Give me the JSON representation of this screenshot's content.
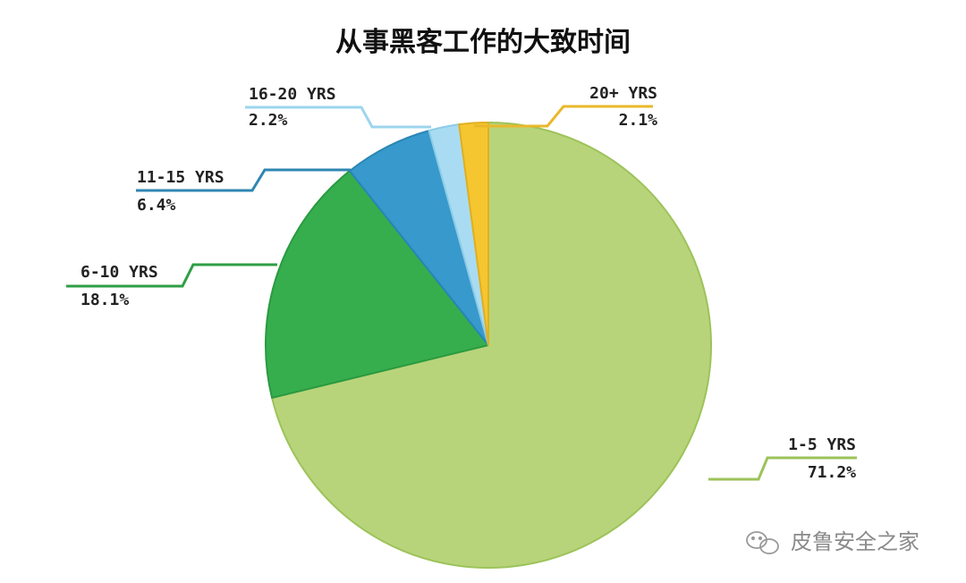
{
  "chart_data": {
    "type": "pie",
    "title": "从事黑客工作的大致时间",
    "start_angle_deg": 0,
    "direction": "clockwise",
    "slices": [
      {
        "label": "1-5 YRS",
        "value": 71.2,
        "value_label": "71.2%",
        "color": "#b8d47a",
        "stroke": "#9cc35a",
        "line_color": "#9cc35a"
      },
      {
        "label": "6-10 YRS",
        "value": 18.1,
        "value_label": "18.1%",
        "color": "#37ae4e",
        "stroke": "#2a9a40",
        "line_color": "#2f9e45"
      },
      {
        "label": "11-15 YRS",
        "value": 6.4,
        "value_label": "6.4%",
        "color": "#3799cc",
        "stroke": "#2a85b5",
        "line_color": "#2f86b3"
      },
      {
        "label": "16-20 YRS",
        "value": 2.2,
        "value_label": "2.2%",
        "color": "#a9dcf2",
        "stroke": "#8ccbe6",
        "line_color": "#9dd5ee"
      },
      {
        "label": "20+ YRS",
        "value": 2.1,
        "value_label": "2.1%",
        "color": "#f6c630",
        "stroke": "#e0b020",
        "line_color": "#e9b82a"
      }
    ]
  },
  "watermark": {
    "text": "皮鲁安全之家",
    "icon": "wechat-icon"
  }
}
